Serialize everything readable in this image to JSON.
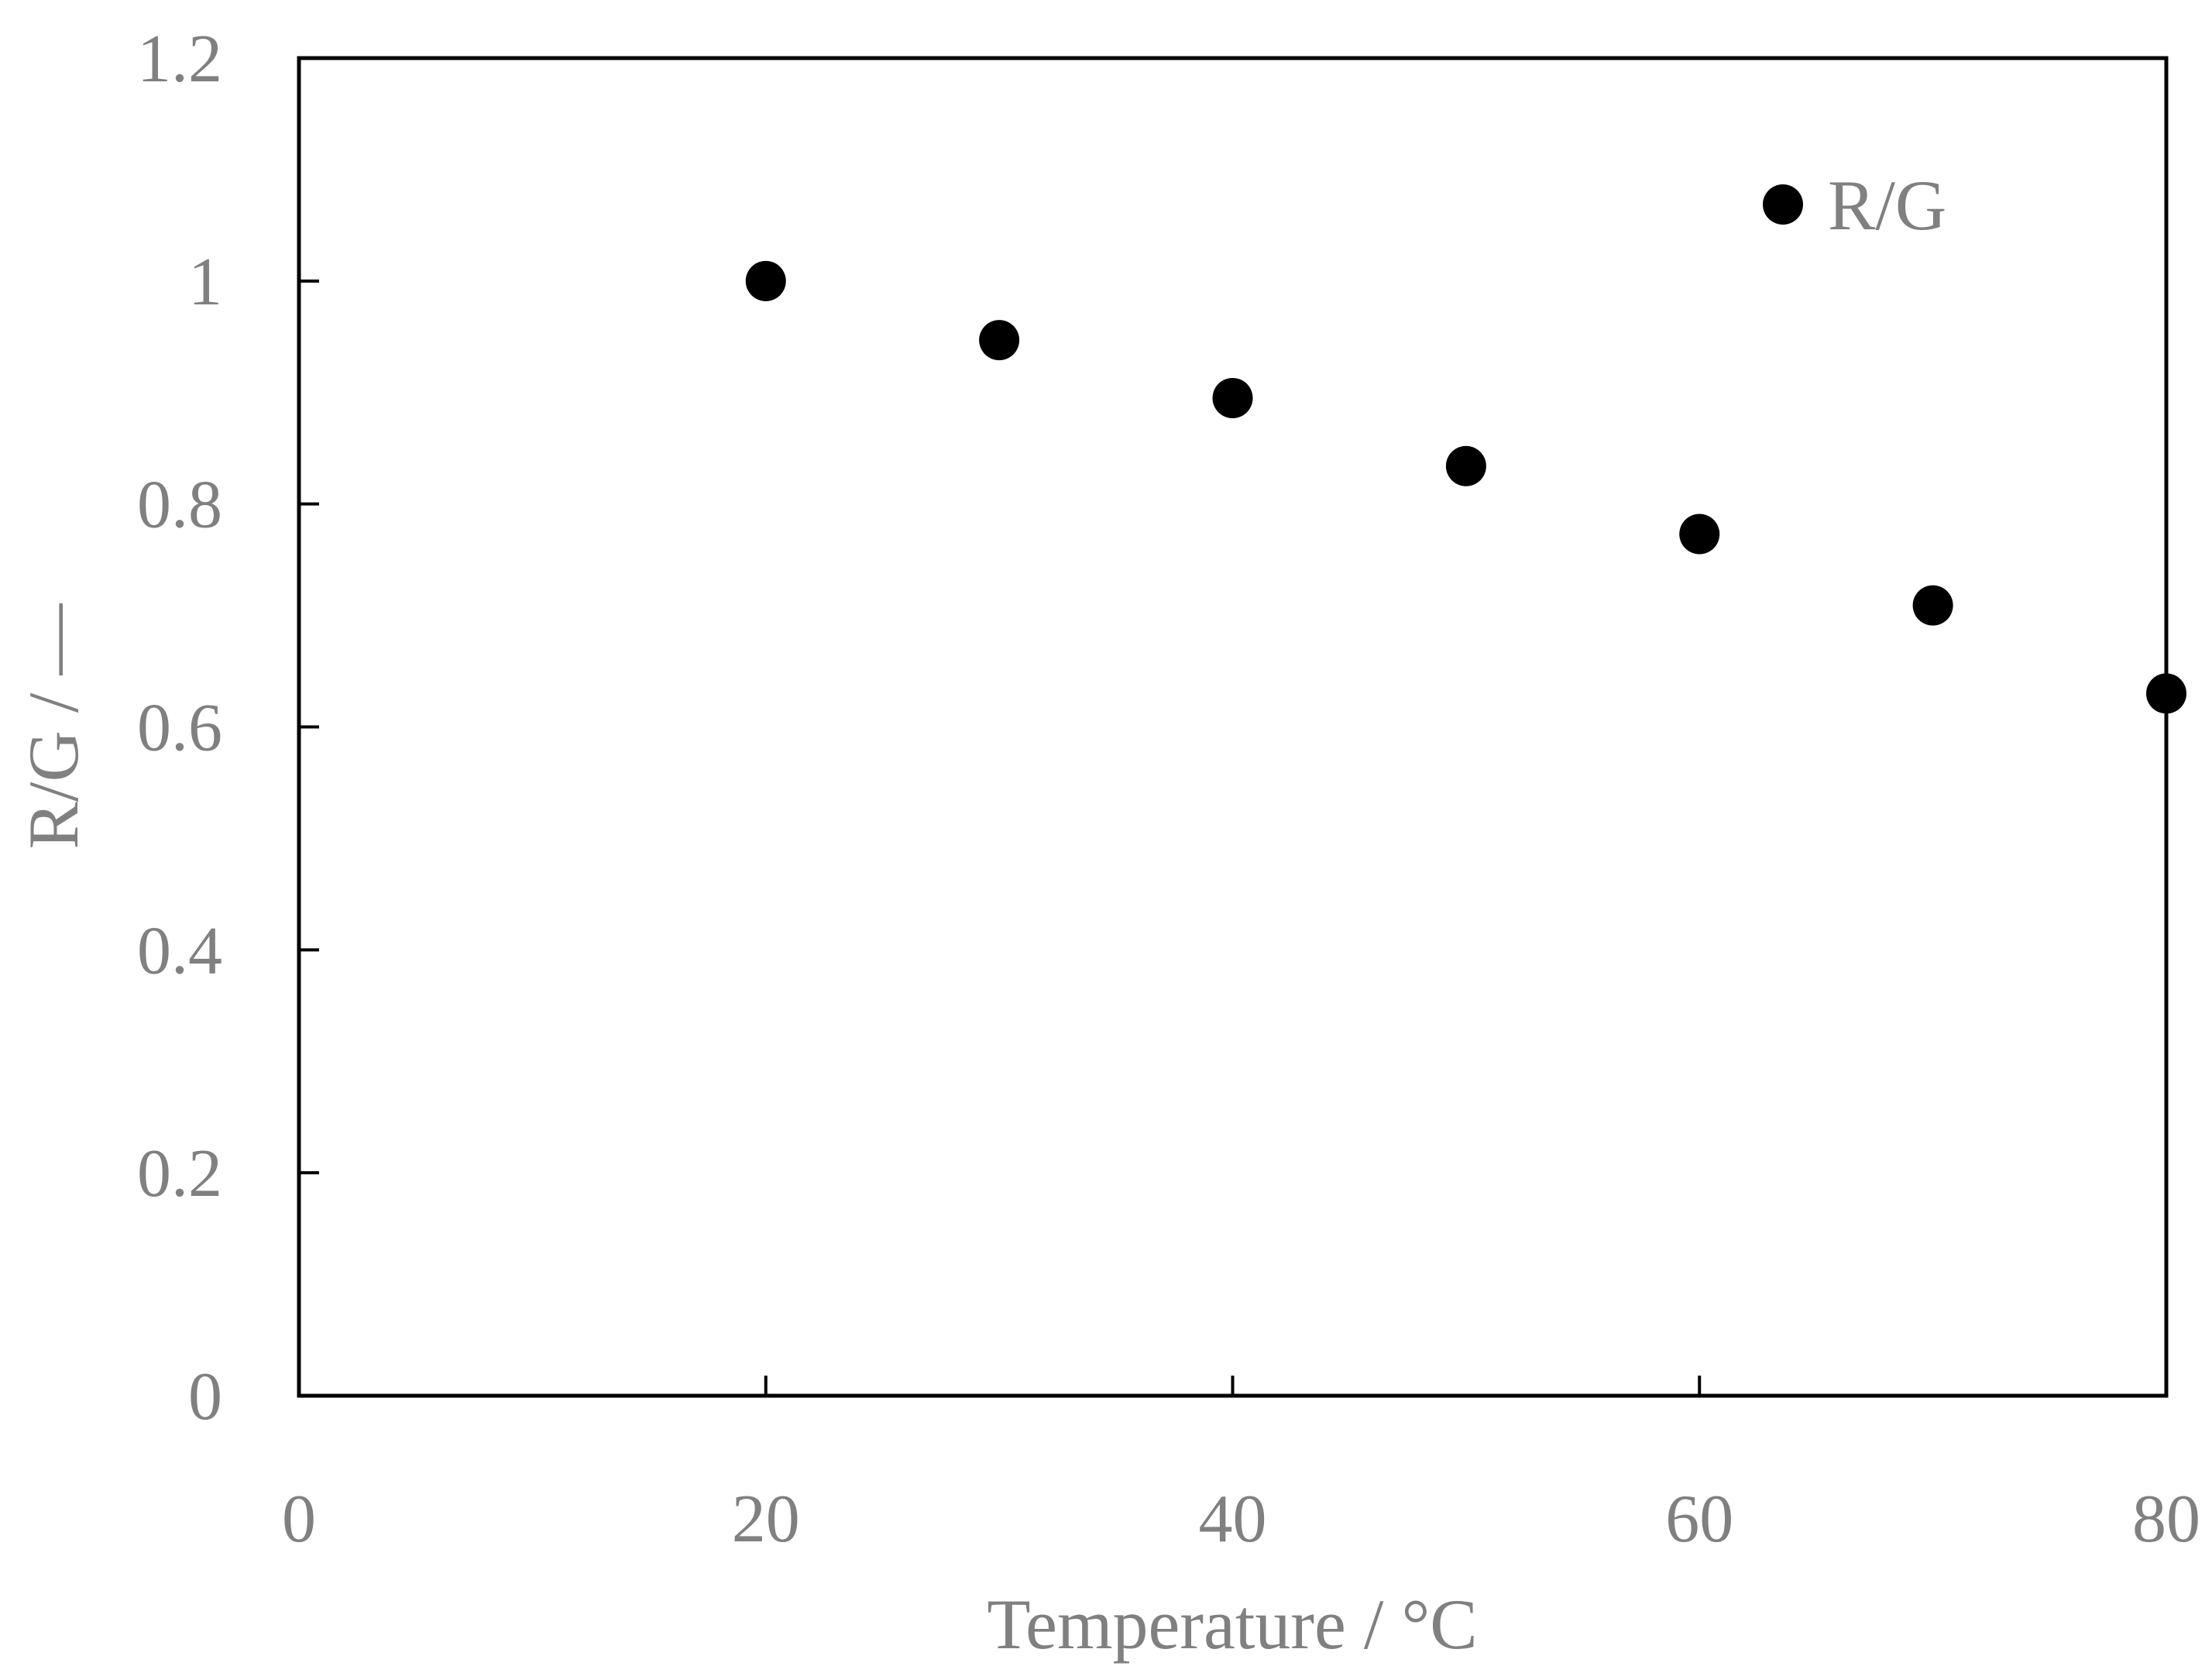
{
  "chart_data": {
    "type": "scatter",
    "title": "",
    "xlabel": "Temperature / °C",
    "ylabel": "R/G / —",
    "xlim": [
      0,
      80
    ],
    "ylim": [
      0,
      1.2
    ],
    "xticks": [
      0,
      20,
      40,
      60,
      80
    ],
    "xtick_labels": [
      "0",
      "20",
      "40",
      "60",
      "80"
    ],
    "yticks": [
      0,
      0.2,
      0.4,
      0.6,
      0.8,
      1.0,
      1.2
    ],
    "ytick_labels": [
      "0",
      "0.2",
      "0.4",
      "0.6",
      "0.8",
      "1",
      "1.2"
    ],
    "grid": false,
    "legend_position": "top-right",
    "series": [
      {
        "name": "R/G",
        "marker": "filled-circle",
        "color": "#000000",
        "x": [
          20,
          30,
          40,
          50,
          60,
          70,
          80
        ],
        "y": [
          1.0,
          0.947,
          0.895,
          0.834,
          0.773,
          0.709,
          0.63
        ]
      }
    ]
  }
}
